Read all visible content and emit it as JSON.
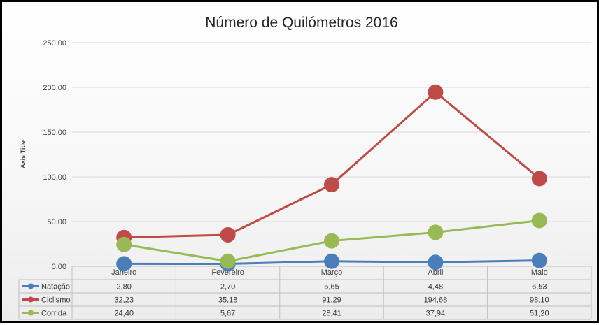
{
  "chart_data": {
    "type": "line",
    "title": "Número de Quilómetros 2016",
    "ylabel": "Axis Title",
    "xlabel": "",
    "categories": [
      "Janeiro",
      "Fevereiro",
      "Março",
      "Abril",
      "Maio"
    ],
    "ylim": [
      0,
      250
    ],
    "yticks": [
      "0,00",
      "50,00",
      "100,00",
      "150,00",
      "200,00",
      "250,00"
    ],
    "grid": true,
    "legend": "data-table",
    "series": [
      {
        "name": "Natação",
        "color": "#4a7ebb",
        "values": [
          2.8,
          2.7,
          5.65,
          4.48,
          6.53
        ],
        "labels": [
          "2,80",
          "2,70",
          "5,65",
          "4,48",
          "6,53"
        ]
      },
      {
        "name": "Ciclismo",
        "color": "#be4b48",
        "values": [
          32.23,
          35.18,
          91.29,
          194.68,
          98.1
        ],
        "labels": [
          "32,23",
          "35,18",
          "91,29",
          "194,68",
          "98,10"
        ]
      },
      {
        "name": "Corrida",
        "color": "#98b954",
        "values": [
          24.4,
          5.67,
          28.41,
          37.94,
          51.2
        ],
        "labels": [
          "24,40",
          "5,67",
          "28,41",
          "37,94",
          "51,20"
        ]
      }
    ]
  }
}
